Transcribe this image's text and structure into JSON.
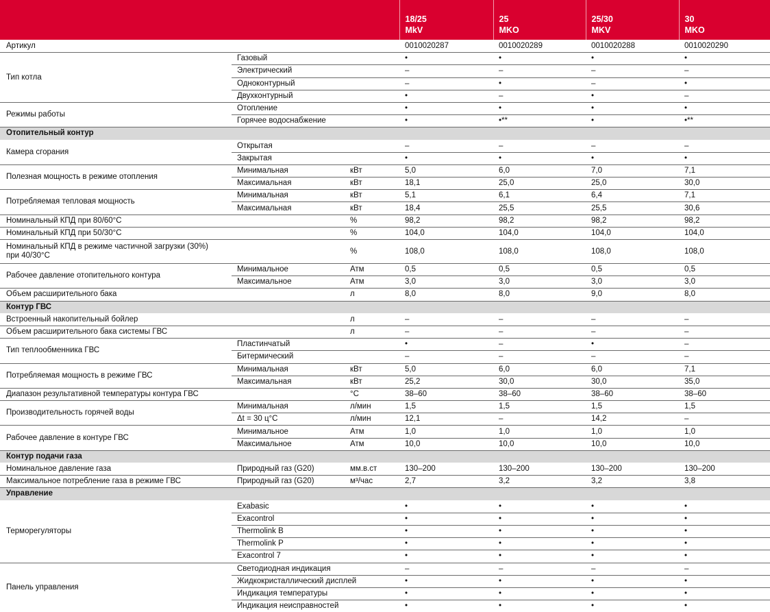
{
  "header": {
    "models": [
      "18/25\nMkV",
      "25\nMKO",
      "25/30\nMKV",
      "30\nMKO"
    ]
  },
  "colors": {
    "header_bg": "#d9002f",
    "section_bg": "#d8d8d8"
  },
  "rows": [
    {
      "label": "Артикул",
      "subrows": [
        {
          "sub": "",
          "unit": "",
          "values": [
            "0010020287",
            "0010020289",
            "0010020288",
            "0010020290"
          ]
        }
      ]
    },
    {
      "label": "Тип котла",
      "subrows": [
        {
          "sub": "Газовый",
          "unit": "",
          "values": [
            "•",
            "•",
            "•",
            "•"
          ]
        },
        {
          "sub": "Электрический",
          "unit": "",
          "values": [
            "–",
            "–",
            "–",
            "–"
          ]
        },
        {
          "sub": "Одноконтурный",
          "unit": "",
          "values": [
            "–",
            "•",
            "–",
            "•"
          ]
        },
        {
          "sub": "Двухконтурный",
          "unit": "",
          "values": [
            "•",
            "–",
            "•",
            "–"
          ]
        }
      ]
    },
    {
      "label": "Режимы работы",
      "subrows": [
        {
          "sub": "Отопление",
          "unit": "",
          "values": [
            "•",
            "•",
            "•",
            "•"
          ]
        },
        {
          "sub": "Горячее водоснабжение",
          "unit": "",
          "values": [
            "•",
            "•**",
            "•",
            "•**"
          ]
        }
      ]
    },
    {
      "section": "Отопительный контур"
    },
    {
      "label": "Камера сгорания",
      "subrows": [
        {
          "sub": "Открытая",
          "unit": "",
          "values": [
            "–",
            "–",
            "–",
            "–"
          ]
        },
        {
          "sub": "Закрытая",
          "unit": "",
          "values": [
            "•",
            "•",
            "•",
            "•"
          ]
        }
      ]
    },
    {
      "label": "Полезная мощность в режиме отопления",
      "subrows": [
        {
          "sub": "Минимальная",
          "unit": "кВт",
          "values": [
            "5,0",
            "6,0",
            "7,0",
            "7,1"
          ]
        },
        {
          "sub": "Максимальная",
          "unit": "кВт",
          "values": [
            "18,1",
            "25,0",
            "25,0",
            "30,0"
          ]
        }
      ]
    },
    {
      "label": "Потребляемая тепловая мощность",
      "subrows": [
        {
          "sub": "Минимальная",
          "unit": "кВт",
          "values": [
            "5,1",
            "6,1",
            "6,4",
            "7,1"
          ]
        },
        {
          "sub": "Максимальная",
          "unit": "кВт",
          "values": [
            "18,4",
            "25,5",
            "25,5",
            "30,6"
          ]
        }
      ]
    },
    {
      "label": "Номинальный КПД при 80/60°C",
      "subrows": [
        {
          "sub": "",
          "unit": "%",
          "values": [
            "98,2",
            "98,2",
            "98,2",
            "98,2"
          ]
        }
      ]
    },
    {
      "label": "Номинальный КПД при 50/30°C",
      "subrows": [
        {
          "sub": "",
          "unit": "%",
          "values": [
            "104,0",
            "104,0",
            "104,0",
            "104,0"
          ]
        }
      ]
    },
    {
      "label": "Номинальный КПД в режиме частичной загрузки (30%)\nпри 40/30°C",
      "double": true,
      "subrows": [
        {
          "sub": "",
          "unit": "%",
          "values": [
            "108,0",
            "108,0",
            "108,0",
            "108,0"
          ]
        }
      ]
    },
    {
      "label": "Рабочее давление отопительного контура",
      "subrows": [
        {
          "sub": "Минимальное",
          "unit": "Атм",
          "values": [
            "0,5",
            "0,5",
            "0,5",
            "0,5"
          ]
        },
        {
          "sub": "Максимальное",
          "unit": "Атм",
          "values": [
            "3,0",
            "3,0",
            "3,0",
            "3,0"
          ]
        }
      ]
    },
    {
      "label": "Объем расширительного бака",
      "subrows": [
        {
          "sub": "",
          "unit": "л",
          "values": [
            "8,0",
            "8,0",
            "9,0",
            "8,0"
          ]
        }
      ]
    },
    {
      "section": "Контур ГВС"
    },
    {
      "label": "Встроенный накопительный бойлер",
      "subrows": [
        {
          "sub": "",
          "unit": "л",
          "values": [
            "–",
            "–",
            "–",
            "–"
          ]
        }
      ]
    },
    {
      "label": "Объем расширительного бака системы ГВС",
      "subrows": [
        {
          "sub": "",
          "unit": "л",
          "values": [
            "–",
            "–",
            "–",
            "–"
          ]
        }
      ]
    },
    {
      "label": "Тип теплообменника ГВС",
      "subrows": [
        {
          "sub": "Пластинчатый",
          "unit": "",
          "values": [
            "•",
            "–",
            "•",
            "–"
          ]
        },
        {
          "sub": "Битермический",
          "unit": "",
          "values": [
            "–",
            "–",
            "–",
            "–"
          ]
        }
      ]
    },
    {
      "label": "Потребляемая мощность в режиме ГВС",
      "subrows": [
        {
          "sub": "Минимальная",
          "unit": "кВт",
          "values": [
            "5,0",
            "6,0",
            "6,0",
            "7,1"
          ]
        },
        {
          "sub": "Максимальная",
          "unit": "кВт",
          "values": [
            "25,2",
            "30,0",
            "30,0",
            "35,0"
          ]
        }
      ]
    },
    {
      "label": "Диапазон результативной температуры контура ГВС",
      "subrows": [
        {
          "sub": "",
          "unit": "°C",
          "values": [
            "38–60",
            "38–60",
            "38–60",
            "38–60"
          ]
        }
      ]
    },
    {
      "label": "Производительность горячей воды",
      "subrows": [
        {
          "sub": "Минимальная",
          "unit": "л/мин",
          "values": [
            "1,5",
            "1,5",
            "1,5",
            "1,5"
          ]
        },
        {
          "sub": "Δt = 30 ц°C",
          "unit": "л/мин",
          "values": [
            "12,1",
            "–",
            "14,2",
            "–"
          ]
        }
      ]
    },
    {
      "label": "Рабочее давление в контуре ГВС",
      "subrows": [
        {
          "sub": "Минимальное",
          "unit": "Атм",
          "values": [
            "1,0",
            "1,0",
            "1,0",
            "1,0"
          ]
        },
        {
          "sub": "Максимальное",
          "unit": "Атм",
          "values": [
            "10,0",
            "10,0",
            "10,0",
            "10,0"
          ]
        }
      ]
    },
    {
      "section": "Контур подачи газа"
    },
    {
      "label": "Номинальное давление газа",
      "subrows": [
        {
          "sub": "Природный газ (G20)",
          "unit": "мм.в.ст",
          "values": [
            "130–200",
            "130–200",
            "130–200",
            "130–200"
          ]
        }
      ]
    },
    {
      "label": "Максимальное потребление газа в режиме ГВС",
      "subrows": [
        {
          "sub": "Природный газ (G20)",
          "unit": "м³/час",
          "values": [
            "2,7",
            "3,2",
            "3,2",
            "3,8"
          ]
        }
      ]
    },
    {
      "section": "Управление"
    },
    {
      "label": "Терморегуляторы",
      "subrows": [
        {
          "sub": "Exabasic",
          "unit": "",
          "values": [
            "•",
            "•",
            "•",
            "•"
          ]
        },
        {
          "sub": "Exacontrol",
          "unit": "",
          "values": [
            "•",
            "•",
            "•",
            "•"
          ]
        },
        {
          "sub": "Thermolink B",
          "unit": "",
          "values": [
            "•",
            "•",
            "•",
            "•"
          ]
        },
        {
          "sub": "Thermolink P",
          "unit": "",
          "values": [
            "•",
            "•",
            "•",
            "•"
          ]
        },
        {
          "sub": "Exacontrol 7",
          "unit": "",
          "values": [
            "•",
            "•",
            "•",
            "•"
          ]
        }
      ]
    },
    {
      "label": "Панель управления",
      "subrows": [
        {
          "sub": "Светодиодная индикация",
          "unit": "",
          "values": [
            "–",
            "–",
            "–",
            "–"
          ]
        },
        {
          "sub": "Жидкокристаллический дисплей",
          "unit": "",
          "values": [
            "•",
            "•",
            "•",
            "•"
          ]
        },
        {
          "sub": "Индикация температуры",
          "unit": "",
          "values": [
            "•",
            "•",
            "•",
            "•"
          ]
        },
        {
          "sub": "Индикация неисправностей",
          "unit": "",
          "values": [
            "•",
            "•",
            "•",
            "•"
          ]
        }
      ]
    }
  ]
}
